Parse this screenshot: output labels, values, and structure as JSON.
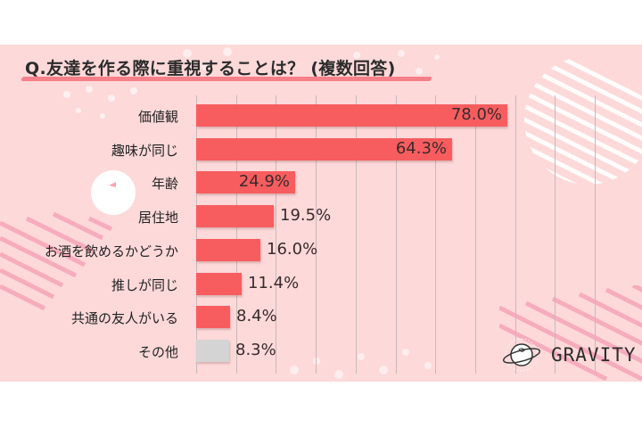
{
  "title": "Q.友達を作る際に重視することは？ (複数回答)",
  "logo": {
    "text": "GRAVITY",
    "icon": "planet-icon"
  },
  "colors": {
    "background": "#fdd9da",
    "bar": "#f75d5f",
    "bar_other": "#d4d4d4",
    "title_underline": "#f5707a"
  },
  "chart_data": {
    "type": "bar",
    "orientation": "horizontal",
    "title": "Q.友達を作る際に重視することは？ (複数回答)",
    "categories": [
      "価値観",
      "趣味が同じ",
      "年齢",
      "居住地",
      "お酒を飲めるかどうか",
      "推しが同じ",
      "共通の友人がいる",
      "その他"
    ],
    "values": [
      78.0,
      64.3,
      24.9,
      19.5,
      16.0,
      11.4,
      8.4,
      8.3
    ],
    "labels": [
      "78.0%",
      "64.3%",
      "24.9%",
      "19.5%",
      "16.0%",
      "11.4%",
      "8.4%",
      "8.3%"
    ],
    "xlabel": "",
    "ylabel": "",
    "xlim": [
      0,
      100
    ],
    "unit": "%",
    "grid": true,
    "grid_interval": 10,
    "legend": "none"
  }
}
